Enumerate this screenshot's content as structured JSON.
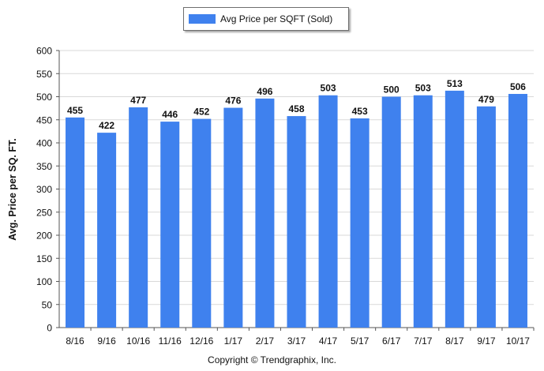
{
  "legend": {
    "label": "Avg Price per SQFT (Sold)"
  },
  "footer": {
    "copyright": "Copyright © Trendgraphix, Inc."
  },
  "colors": {
    "bar": "#3f81ee",
    "grid": "#d9d9d9",
    "axis": "#555555"
  },
  "chart_data": {
    "type": "bar",
    "categories": [
      "8/16",
      "9/16",
      "10/16",
      "11/16",
      "12/16",
      "1/17",
      "2/17",
      "3/17",
      "4/17",
      "5/17",
      "6/17",
      "7/17",
      "8/17",
      "9/17",
      "10/17"
    ],
    "series": [
      {
        "name": "Avg Price per SQFT (Sold)",
        "values": [
          455,
          422,
          477,
          446,
          452,
          476,
          496,
          458,
          503,
          453,
          500,
          503,
          513,
          479,
          506
        ]
      }
    ],
    "ylabel": "Avg. Price per SQ. FT.",
    "xlabel": "",
    "ylim": [
      0,
      600
    ],
    "yticks": [
      0,
      50,
      100,
      150,
      200,
      250,
      300,
      350,
      400,
      450,
      500,
      550,
      600
    ],
    "grid": true,
    "legend_position": "top-center",
    "data_labels": true
  }
}
